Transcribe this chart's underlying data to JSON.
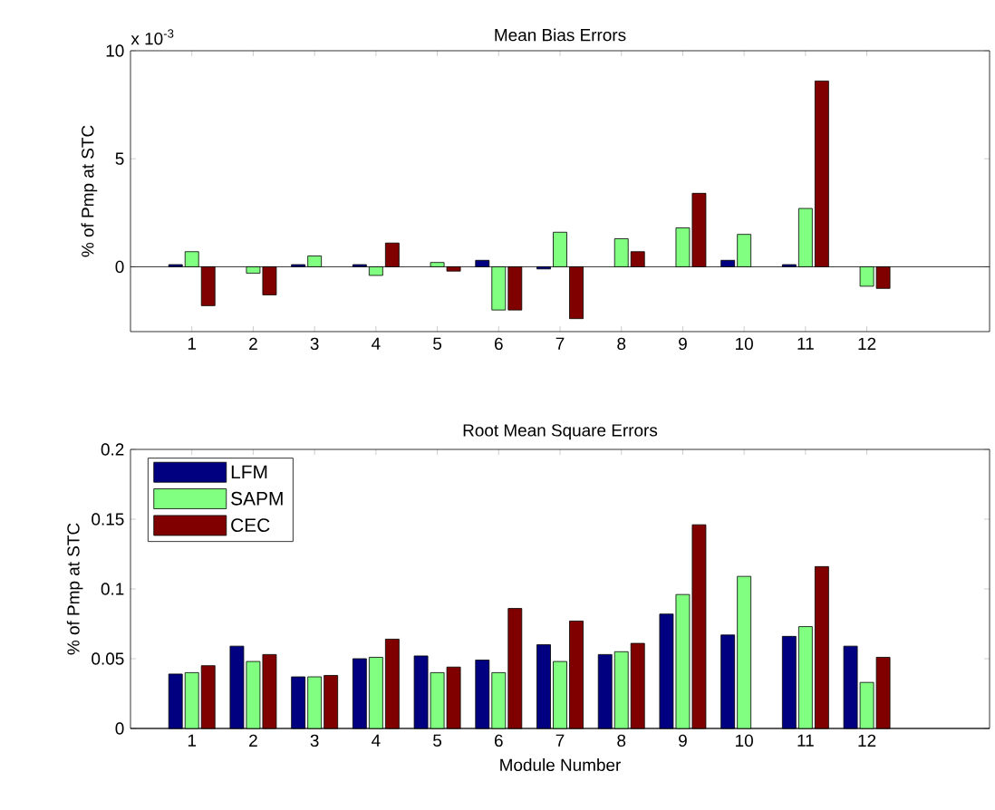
{
  "chart_data": [
    {
      "type": "bar",
      "title": "Mean Bias Errors",
      "ylabel": "% of Pmp at STC",
      "annotations": [
        "x 10$^{-3}$"
      ],
      "x": [
        1,
        2,
        3,
        4,
        5,
        6,
        7,
        8,
        9,
        10,
        11,
        12
      ],
      "xlim": [
        0,
        14
      ],
      "xticks": [
        1,
        2,
        3,
        4,
        5,
        6,
        7,
        8,
        9,
        10,
        11,
        12
      ],
      "ylim": [
        -3,
        10
      ],
      "yticks": [
        0,
        5,
        10
      ],
      "series": [
        {
          "color": "#000080",
          "values": [
            0.1,
            null,
            0.1,
            0.1,
            null,
            0.3,
            -0.1,
            null,
            null,
            0.3,
            0.1,
            null
          ]
        },
        {
          "color": "#80ff80",
          "values": [
            0.7,
            -0.3,
            0.5,
            -0.4,
            0.2,
            -2.0,
            1.6,
            1.3,
            1.8,
            1.5,
            2.7,
            -0.9
          ]
        },
        {
          "color": "#800000",
          "values": [
            -1.8,
            -1.3,
            null,
            1.1,
            -0.2,
            -2.0,
            -2.4,
            0.7,
            3.4,
            null,
            8.6,
            -1.0
          ]
        }
      ]
    },
    {
      "type": "bar",
      "title": "Root Mean Square Errors",
      "ylabel": "% of Pmp at STC",
      "xlabel": "Module Number",
      "legend": "top left",
      "x": [
        1,
        2,
        3,
        4,
        5,
        6,
        7,
        8,
        9,
        10,
        11,
        12
      ],
      "xlim": [
        0,
        14
      ],
      "xticks": [
        1,
        2,
        3,
        4,
        5,
        6,
        7,
        8,
        9,
        10,
        11,
        12
      ],
      "ylim": [
        0,
        0.2
      ],
      "yticks": [
        0,
        0.05,
        0.1,
        0.15,
        0.2
      ],
      "series": [
        {
          "name": "LFM",
          "color": "#000080",
          "values": [
            0.039,
            0.059,
            0.037,
            0.05,
            0.052,
            0.049,
            0.06,
            0.053,
            0.082,
            0.067,
            0.066,
            0.059
          ]
        },
        {
          "name": "SAPM",
          "color": "#80ff80",
          "values": [
            0.04,
            0.048,
            0.037,
            0.051,
            0.04,
            0.04,
            0.048,
            0.055,
            0.096,
            0.109,
            0.073,
            0.033
          ]
        },
        {
          "name": "CEC",
          "color": "#800000",
          "values": [
            0.045,
            0.053,
            0.038,
            0.064,
            0.044,
            0.086,
            0.077,
            0.061,
            0.146,
            null,
            0.116,
            0.051
          ]
        }
      ]
    }
  ]
}
